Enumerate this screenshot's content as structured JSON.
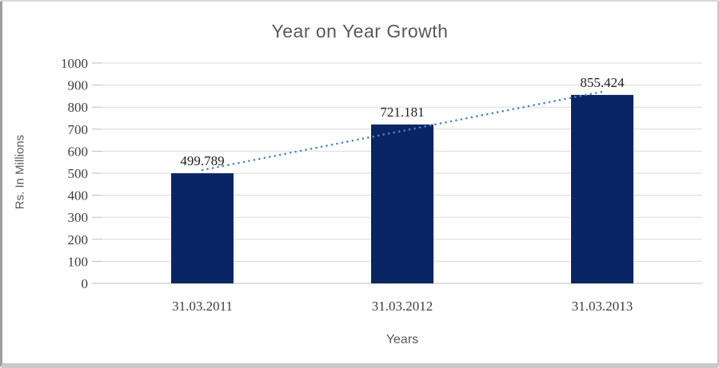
{
  "chart_data": {
    "type": "bar",
    "title": "Year on Year Growth",
    "xlabel": "Years",
    "ylabel": "Rs. In Millions",
    "categories": [
      "31.03.2011",
      "31.03.2012",
      "31.03.2013"
    ],
    "values": [
      499.789,
      721.181,
      855.424
    ],
    "data_labels": [
      "499.789",
      "721.181",
      "855.424"
    ],
    "ylim": [
      0,
      1000
    ],
    "ytick_step": 100,
    "ytick_labels": [
      "0",
      "100",
      "200",
      "300",
      "400",
      "500",
      "600",
      "700",
      "800",
      "900",
      "1000"
    ],
    "grid": true,
    "legend": "none",
    "bar_color": "#0a2563",
    "trendline": {
      "type": "linear",
      "style": "dotted",
      "color": "#4a87c7"
    },
    "colors": {
      "gridline": "#d9d9d9",
      "axis_line": "#bfbfbf",
      "title_text": "#595959",
      "tick_text": "#3f3f3f",
      "data_label_text": "#1f1f1f"
    }
  }
}
